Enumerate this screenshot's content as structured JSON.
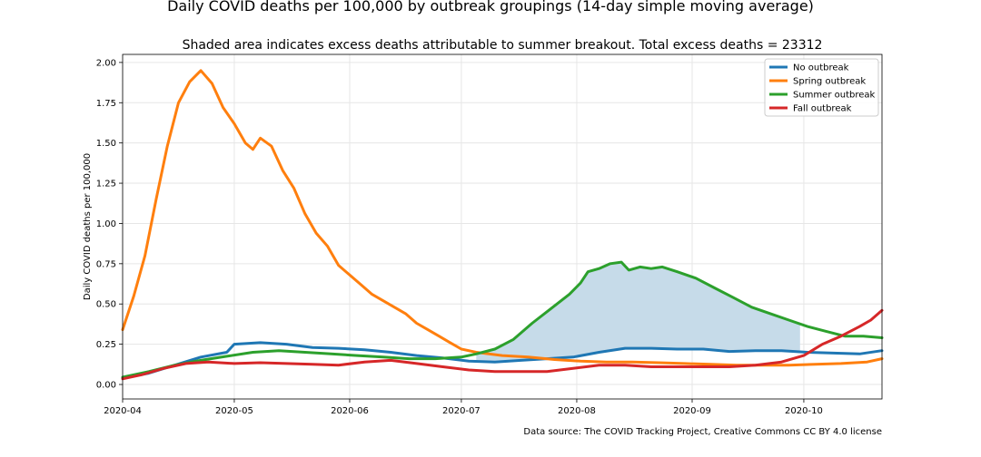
{
  "chart_data": {
    "type": "line",
    "title": "Daily COVID deaths per 100,000 by outbreak groupings (14-day simple moving average)",
    "subtitle": "Shaded area indicates excess deaths attributable to summer breakout. Total excess deaths = 23312",
    "ylabel": "Daily COVID deaths per 100,000",
    "source": "Data source: The COVID Tracking Project, Creative Commons CC BY 4.0 license",
    "xlim": [
      "2020-04-01",
      "2020-10-22"
    ],
    "ylim": [
      -0.09,
      2.05
    ],
    "x_ticks": [
      "2020-04",
      "2020-05",
      "2020-06",
      "2020-07",
      "2020-08",
      "2020-09",
      "2020-10"
    ],
    "y_ticks": [
      "0.00",
      "0.25",
      "0.50",
      "0.75",
      "1.00",
      "1.25",
      "1.50",
      "1.75",
      "2.00"
    ],
    "y_tick_values": [
      0,
      0.25,
      0.5,
      0.75,
      1.0,
      1.25,
      1.5,
      1.75,
      2.0
    ],
    "grid": true,
    "legend_position": "top-right",
    "shade": {
      "series": "Summer outbreak",
      "baseline": "No outbreak",
      "from": "2020-07-05",
      "to": "2020-09-30",
      "color": "#c6dbe9"
    },
    "series": [
      {
        "name": "No outbreak",
        "color": "#1f77b4",
        "points": [
          [
            "2020-04-01",
            0.04
          ],
          [
            "2020-04-08",
            0.07
          ],
          [
            "2020-04-15",
            0.12
          ],
          [
            "2020-04-22",
            0.17
          ],
          [
            "2020-04-29",
            0.2
          ],
          [
            "2020-05-01",
            0.25
          ],
          [
            "2020-05-08",
            0.26
          ],
          [
            "2020-05-15",
            0.25
          ],
          [
            "2020-05-22",
            0.23
          ],
          [
            "2020-05-29",
            0.225
          ],
          [
            "2020-06-05",
            0.215
          ],
          [
            "2020-06-12",
            0.2
          ],
          [
            "2020-06-19",
            0.18
          ],
          [
            "2020-06-26",
            0.165
          ],
          [
            "2020-07-03",
            0.145
          ],
          [
            "2020-07-10",
            0.14
          ],
          [
            "2020-07-17",
            0.15
          ],
          [
            "2020-07-24",
            0.16
          ],
          [
            "2020-07-31",
            0.17
          ],
          [
            "2020-08-07",
            0.2
          ],
          [
            "2020-08-14",
            0.225
          ],
          [
            "2020-08-21",
            0.225
          ],
          [
            "2020-08-28",
            0.22
          ],
          [
            "2020-09-04",
            0.22
          ],
          [
            "2020-09-11",
            0.205
          ],
          [
            "2020-09-18",
            0.21
          ],
          [
            "2020-09-25",
            0.21
          ],
          [
            "2020-10-02",
            0.2
          ],
          [
            "2020-10-09",
            0.195
          ],
          [
            "2020-10-16",
            0.19
          ],
          [
            "2020-10-22",
            0.21
          ]
        ]
      },
      {
        "name": "Spring outbreak",
        "color": "#ff7f0e",
        "points": [
          [
            "2020-04-01",
            0.34
          ],
          [
            "2020-04-04",
            0.55
          ],
          [
            "2020-04-07",
            0.8
          ],
          [
            "2020-04-10",
            1.15
          ],
          [
            "2020-04-13",
            1.48
          ],
          [
            "2020-04-16",
            1.75
          ],
          [
            "2020-04-19",
            1.88
          ],
          [
            "2020-04-22",
            1.95
          ],
          [
            "2020-04-25",
            1.87
          ],
          [
            "2020-04-28",
            1.72
          ],
          [
            "2020-05-01",
            1.62
          ],
          [
            "2020-05-04",
            1.5
          ],
          [
            "2020-05-06",
            1.46
          ],
          [
            "2020-05-08",
            1.53
          ],
          [
            "2020-05-11",
            1.48
          ],
          [
            "2020-05-14",
            1.33
          ],
          [
            "2020-05-17",
            1.22
          ],
          [
            "2020-05-20",
            1.06
          ],
          [
            "2020-05-23",
            0.94
          ],
          [
            "2020-05-26",
            0.86
          ],
          [
            "2020-05-29",
            0.74
          ],
          [
            "2020-06-01",
            0.68
          ],
          [
            "2020-06-04",
            0.62
          ],
          [
            "2020-06-07",
            0.56
          ],
          [
            "2020-06-10",
            0.52
          ],
          [
            "2020-06-13",
            0.48
          ],
          [
            "2020-06-16",
            0.44
          ],
          [
            "2020-06-19",
            0.38
          ],
          [
            "2020-06-22",
            0.34
          ],
          [
            "2020-06-25",
            0.3
          ],
          [
            "2020-06-28",
            0.26
          ],
          [
            "2020-07-01",
            0.22
          ],
          [
            "2020-07-05",
            0.2
          ],
          [
            "2020-07-12",
            0.18
          ],
          [
            "2020-07-19",
            0.17
          ],
          [
            "2020-07-26",
            0.155
          ],
          [
            "2020-08-02",
            0.145
          ],
          [
            "2020-08-09",
            0.14
          ],
          [
            "2020-08-16",
            0.14
          ],
          [
            "2020-08-23",
            0.135
          ],
          [
            "2020-08-30",
            0.13
          ],
          [
            "2020-09-06",
            0.125
          ],
          [
            "2020-09-13",
            0.12
          ],
          [
            "2020-09-20",
            0.12
          ],
          [
            "2020-09-27",
            0.12
          ],
          [
            "2020-10-04",
            0.125
          ],
          [
            "2020-10-11",
            0.13
          ],
          [
            "2020-10-18",
            0.14
          ],
          [
            "2020-10-22",
            0.16
          ]
        ]
      },
      {
        "name": "Summer outbreak",
        "color": "#2ca02c",
        "points": [
          [
            "2020-04-01",
            0.045
          ],
          [
            "2020-04-08",
            0.08
          ],
          [
            "2020-04-15",
            0.12
          ],
          [
            "2020-04-22",
            0.15
          ],
          [
            "2020-04-29",
            0.175
          ],
          [
            "2020-05-06",
            0.2
          ],
          [
            "2020-05-13",
            0.21
          ],
          [
            "2020-05-20",
            0.2
          ],
          [
            "2020-05-27",
            0.19
          ],
          [
            "2020-06-03",
            0.18
          ],
          [
            "2020-06-10",
            0.17
          ],
          [
            "2020-06-17",
            0.16
          ],
          [
            "2020-06-24",
            0.16
          ],
          [
            "2020-07-01",
            0.17
          ],
          [
            "2020-07-05",
            0.19
          ],
          [
            "2020-07-10",
            0.22
          ],
          [
            "2020-07-15",
            0.28
          ],
          [
            "2020-07-20",
            0.38
          ],
          [
            "2020-07-25",
            0.47
          ],
          [
            "2020-07-30",
            0.56
          ],
          [
            "2020-08-02",
            0.63
          ],
          [
            "2020-08-04",
            0.7
          ],
          [
            "2020-08-07",
            0.72
          ],
          [
            "2020-08-10",
            0.75
          ],
          [
            "2020-08-13",
            0.76
          ],
          [
            "2020-08-15",
            0.71
          ],
          [
            "2020-08-18",
            0.73
          ],
          [
            "2020-08-21",
            0.72
          ],
          [
            "2020-08-24",
            0.73
          ],
          [
            "2020-08-28",
            0.7
          ],
          [
            "2020-09-02",
            0.66
          ],
          [
            "2020-09-07",
            0.6
          ],
          [
            "2020-09-12",
            0.54
          ],
          [
            "2020-09-17",
            0.48
          ],
          [
            "2020-09-22",
            0.44
          ],
          [
            "2020-09-27",
            0.4
          ],
          [
            "2020-10-02",
            0.36
          ],
          [
            "2020-10-07",
            0.33
          ],
          [
            "2020-10-12",
            0.3
          ],
          [
            "2020-10-17",
            0.3
          ],
          [
            "2020-10-22",
            0.29
          ]
        ]
      },
      {
        "name": "Fall outbreak",
        "color": "#d62728",
        "points": [
          [
            "2020-04-01",
            0.035
          ],
          [
            "2020-04-06",
            0.06
          ],
          [
            "2020-04-12",
            0.1
          ],
          [
            "2020-04-18",
            0.13
          ],
          [
            "2020-04-24",
            0.14
          ],
          [
            "2020-05-01",
            0.13
          ],
          [
            "2020-05-08",
            0.135
          ],
          [
            "2020-05-15",
            0.13
          ],
          [
            "2020-05-22",
            0.125
          ],
          [
            "2020-05-29",
            0.12
          ],
          [
            "2020-06-05",
            0.14
          ],
          [
            "2020-06-12",
            0.15
          ],
          [
            "2020-06-19",
            0.13
          ],
          [
            "2020-06-26",
            0.11
          ],
          [
            "2020-07-03",
            0.09
          ],
          [
            "2020-07-10",
            0.08
          ],
          [
            "2020-07-17",
            0.08
          ],
          [
            "2020-07-24",
            0.08
          ],
          [
            "2020-07-31",
            0.1
          ],
          [
            "2020-08-07",
            0.12
          ],
          [
            "2020-08-14",
            0.12
          ],
          [
            "2020-08-21",
            0.11
          ],
          [
            "2020-08-28",
            0.11
          ],
          [
            "2020-09-04",
            0.11
          ],
          [
            "2020-09-11",
            0.11
          ],
          [
            "2020-09-18",
            0.12
          ],
          [
            "2020-09-25",
            0.14
          ],
          [
            "2020-10-01",
            0.18
          ],
          [
            "2020-10-06",
            0.25
          ],
          [
            "2020-10-11",
            0.3
          ],
          [
            "2020-10-16",
            0.36
          ],
          [
            "2020-10-19",
            0.4
          ],
          [
            "2020-10-22",
            0.46
          ]
        ]
      }
    ]
  }
}
